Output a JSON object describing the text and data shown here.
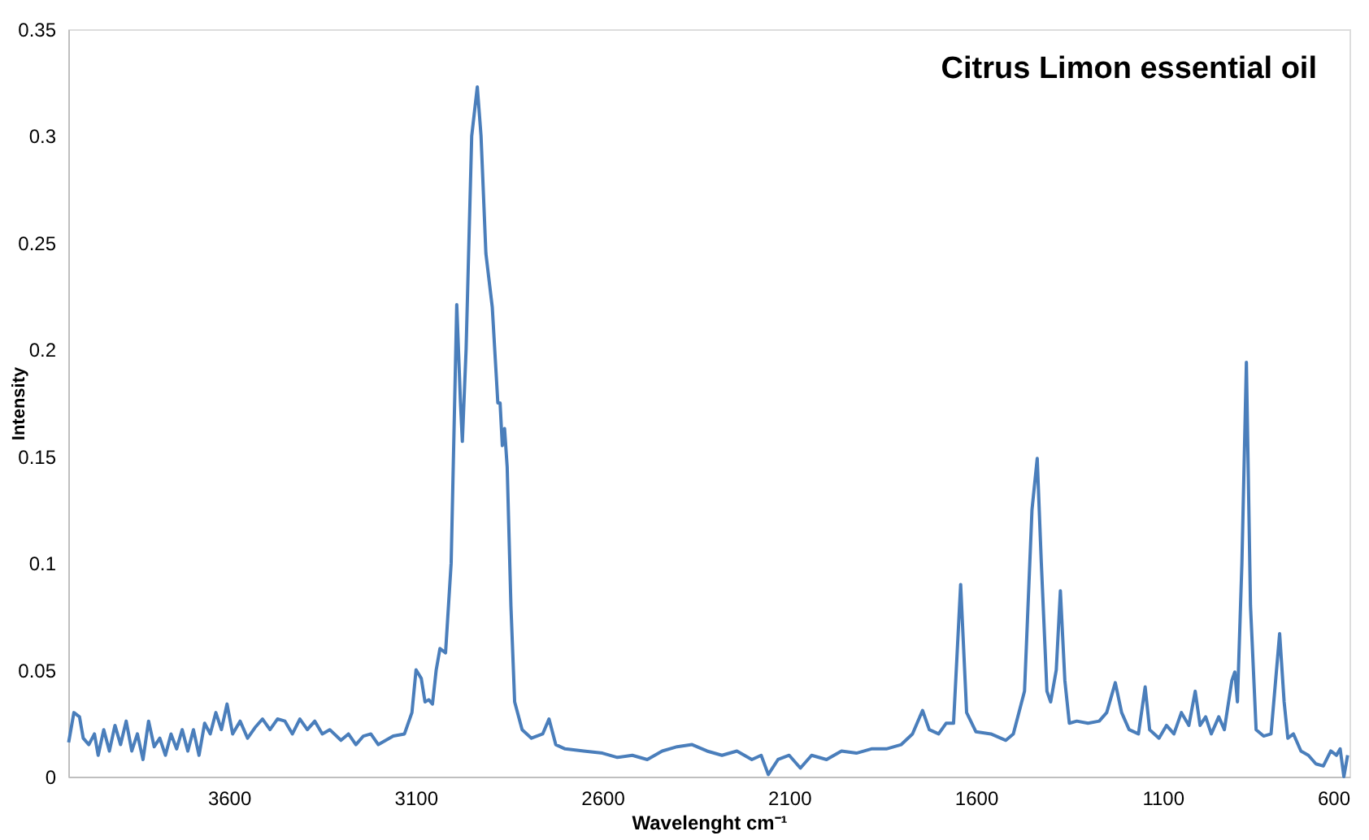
{
  "chart_data": {
    "type": "line",
    "title": "Citrus Limon essential oil",
    "xlabel": "Wavelenght cm⁻¹",
    "ylabel": "Intensity",
    "xlim": [
      4030,
      600
    ],
    "xticks": [
      3600,
      3100,
      2600,
      2100,
      1600,
      1100,
      600
    ],
    "ylim": [
      0,
      0.35
    ],
    "yticks": [
      0,
      0.05,
      0.1,
      0.15,
      0.2,
      0.25,
      0.3,
      0.35
    ],
    "grid": false,
    "legend": false,
    "marker": "none",
    "line_style": "solid",
    "x": [
      4029,
      4015,
      4000,
      3990,
      3975,
      3960,
      3950,
      3935,
      3920,
      3905,
      3890,
      3875,
      3860,
      3845,
      3830,
      3815,
      3800,
      3785,
      3770,
      3755,
      3740,
      3725,
      3710,
      3695,
      3680,
      3665,
      3650,
      3635,
      3620,
      3605,
      3590,
      3570,
      3550,
      3530,
      3510,
      3490,
      3470,
      3450,
      3430,
      3410,
      3390,
      3370,
      3350,
      3330,
      3300,
      3280,
      3260,
      3240,
      3220,
      3200,
      3180,
      3160,
      3130,
      3110,
      3099,
      3085,
      3075,
      3065,
      3055,
      3045,
      3035,
      3020,
      3005,
      2990,
      2980,
      2975,
      2965,
      2950,
      2935,
      2925,
      2912,
      2895,
      2880,
      2874,
      2868,
      2862,
      2855,
      2845,
      2835,
      2815,
      2790,
      2760,
      2743,
      2725,
      2700,
      2650,
      2600,
      2560,
      2520,
      2480,
      2440,
      2400,
      2360,
      2320,
      2280,
      2240,
      2200,
      2175,
      2156,
      2130,
      2100,
      2070,
      2040,
      2000,
      1960,
      1920,
      1880,
      1840,
      1800,
      1770,
      1743,
      1725,
      1700,
      1680,
      1660,
      1641,
      1625,
      1600,
      1560,
      1520,
      1500,
      1470,
      1450,
      1436,
      1425,
      1410,
      1400,
      1385,
      1374,
      1362,
      1350,
      1330,
      1300,
      1270,
      1250,
      1227,
      1210,
      1190,
      1165,
      1147,
      1135,
      1110,
      1090,
      1070,
      1050,
      1030,
      1013,
      1000,
      985,
      970,
      950,
      935,
      915,
      907,
      900,
      888,
      876,
      865,
      850,
      830,
      810,
      787,
      775,
      765,
      750,
      730,
      710,
      690,
      670,
      650,
      635,
      625,
      615,
      605
    ],
    "series": [
      {
        "color": "#4a7ebb",
        "values": [
          0.016,
          0.03,
          0.028,
          0.018,
          0.015,
          0.02,
          0.01,
          0.022,
          0.012,
          0.024,
          0.015,
          0.026,
          0.012,
          0.02,
          0.008,
          0.026,
          0.014,
          0.018,
          0.01,
          0.02,
          0.013,
          0.022,
          0.012,
          0.022,
          0.01,
          0.025,
          0.02,
          0.03,
          0.022,
          0.034,
          0.02,
          0.026,
          0.018,
          0.023,
          0.027,
          0.022,
          0.027,
          0.026,
          0.02,
          0.027,
          0.022,
          0.026,
          0.02,
          0.022,
          0.017,
          0.02,
          0.015,
          0.019,
          0.02,
          0.015,
          0.017,
          0.019,
          0.02,
          0.03,
          0.05,
          0.046,
          0.035,
          0.036,
          0.034,
          0.05,
          0.06,
          0.058,
          0.1,
          0.221,
          0.175,
          0.157,
          0.2,
          0.3,
          0.323,
          0.3,
          0.245,
          0.22,
          0.175,
          0.175,
          0.155,
          0.163,
          0.145,
          0.08,
          0.035,
          0.022,
          0.018,
          0.02,
          0.027,
          0.015,
          0.013,
          0.012,
          0.011,
          0.009,
          0.01,
          0.008,
          0.012,
          0.014,
          0.015,
          0.012,
          0.01,
          0.012,
          0.008,
          0.01,
          0.001,
          0.008,
          0.01,
          0.004,
          0.01,
          0.008,
          0.012,
          0.011,
          0.013,
          0.013,
          0.015,
          0.02,
          0.031,
          0.022,
          0.02,
          0.025,
          0.025,
          0.09,
          0.03,
          0.021,
          0.02,
          0.017,
          0.02,
          0.04,
          0.125,
          0.149,
          0.1,
          0.04,
          0.035,
          0.05,
          0.087,
          0.045,
          0.025,
          0.026,
          0.025,
          0.026,
          0.03,
          0.044,
          0.03,
          0.022,
          0.02,
          0.042,
          0.022,
          0.018,
          0.024,
          0.02,
          0.03,
          0.024,
          0.04,
          0.024,
          0.028,
          0.02,
          0.028,
          0.022,
          0.045,
          0.049,
          0.035,
          0.1,
          0.194,
          0.08,
          0.022,
          0.019,
          0.02,
          0.067,
          0.035,
          0.018,
          0.02,
          0.012,
          0.01,
          0.006,
          0.005,
          0.012,
          0.01,
          0.013,
          0.0,
          0.01
        ]
      }
    ]
  }
}
